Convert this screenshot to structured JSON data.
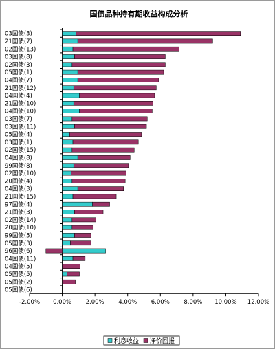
{
  "chart_data": {
    "type": "bar",
    "orientation": "horizontal",
    "stacked": true,
    "title": "国债品种持有期收益构成分析",
    "xlabel": "",
    "ylabel": "",
    "xlim": [
      -0.02,
      0.12
    ],
    "x_ticks": [
      "-2.00%",
      "0.00%",
      "2.00%",
      "4.00%",
      "6.00%",
      "8.00%",
      "10.00%",
      "12.00%"
    ],
    "grid": false,
    "legend_position": "bottom",
    "categories": [
      "03国债(3)",
      "21国债(7)",
      "02国债(13)",
      "03国债(8)",
      "02国债(3)",
      "05国债(1)",
      "04国债(7)",
      "21国债(12)",
      "04国债(4)",
      "21国债(10)",
      "04国债(10)",
      "03国债(7)",
      "03国债(11)",
      "05国债(4)",
      "03国债(1)",
      "02国债(15)",
      "04国债(8)",
      "99国债(8)",
      "02国债(10)",
      "20国债(4)",
      "04国债(3)",
      "21国债(15)",
      "97国债(4)",
      "21国债(3)",
      "02国债(14)",
      "20国债(10)",
      "99国债(5)",
      "05国债(3)",
      "96国债(6)",
      "04国债(11)",
      "04国债(5)",
      "05国债(5)",
      "05国债(2)",
      "05国债(6)"
    ],
    "series": [
      {
        "name": "利息收益",
        "color": "#33cccc",
        "values": [
          0.0085,
          0.0095,
          0.0065,
          0.0075,
          0.006,
          0.0095,
          0.0095,
          0.007,
          0.0105,
          0.007,
          0.0105,
          0.006,
          0.0075,
          0.0045,
          0.0065,
          0.006,
          0.0095,
          0.007,
          0.0055,
          0.006,
          0.0095,
          0.0065,
          0.0185,
          0.0075,
          0.006,
          0.006,
          0.0075,
          0.005,
          0.0265,
          0.0065,
          0.0,
          0.003,
          0.0,
          0.0
        ]
      },
      {
        "name": "净价回报",
        "color": "#993366",
        "values": [
          0.1005,
          0.0825,
          0.065,
          0.0555,
          0.057,
          0.0525,
          0.0495,
          0.0505,
          0.046,
          0.0485,
          0.0445,
          0.046,
          0.044,
          0.044,
          0.04,
          0.038,
          0.032,
          0.0335,
          0.0335,
          0.0325,
          0.028,
          0.0265,
          0.0105,
          0.0175,
          0.0145,
          0.013,
          0.01,
          0.0125,
          -0.01,
          0.0075,
          0.011,
          0.0075,
          0.008,
          0.0
        ]
      }
    ]
  }
}
